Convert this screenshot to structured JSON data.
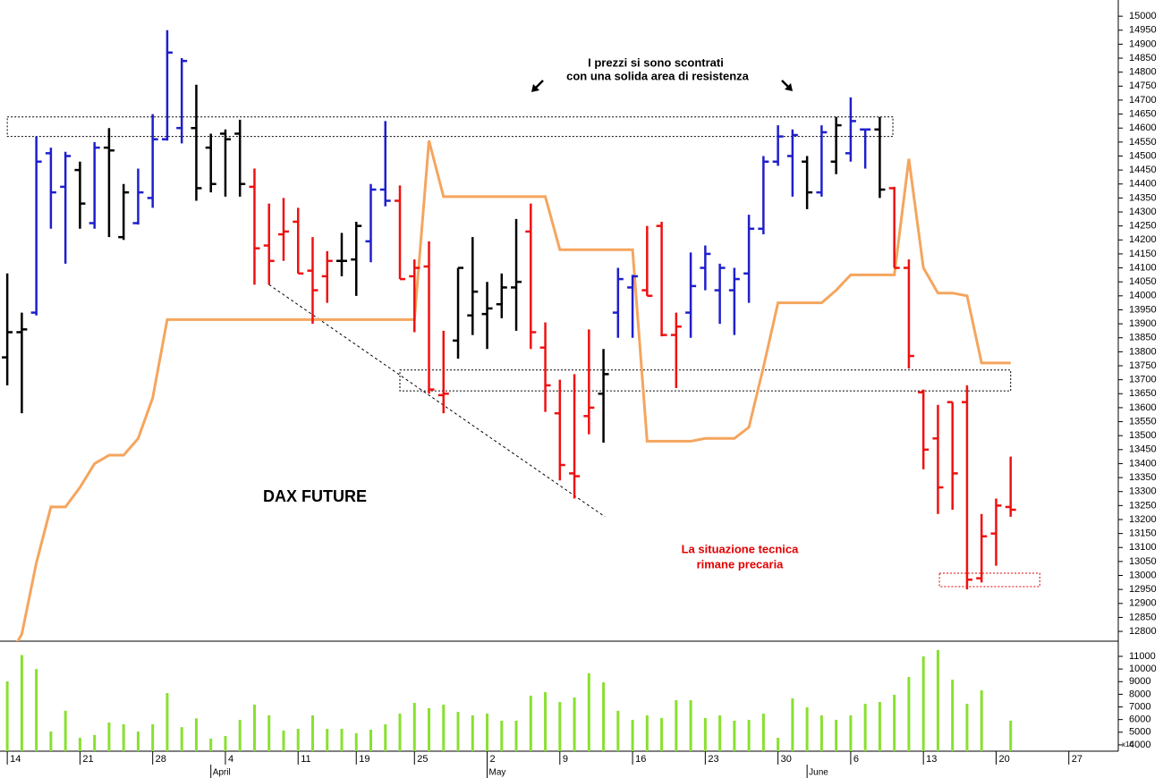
{
  "chart_data": [
    {
      "type": "ohlc",
      "title": "DAX FUTURE",
      "annotations": [
        "I prezzi si sono scontrati",
        "con una solida area di resistenza",
        "La situazione tecnica",
        "rimane precaria"
      ],
      "x": [
        0,
        1,
        2,
        3,
        4,
        5,
        6,
        7,
        8,
        9,
        10,
        11,
        12,
        13,
        14,
        15,
        16,
        17,
        18,
        19,
        20,
        21,
        22,
        23,
        24,
        25,
        26,
        27,
        28,
        29,
        30,
        31,
        32,
        33,
        34,
        35,
        36,
        37,
        38,
        39,
        40,
        41,
        42,
        43,
        44,
        45,
        46,
        47,
        48,
        49,
        50,
        51,
        52,
        53,
        54,
        55,
        56,
        57,
        58,
        59,
        60,
        61,
        62,
        63,
        64,
        65,
        66,
        67,
        68,
        69
      ],
      "xlim": [
        -0.5,
        76.4
      ],
      "ylim": [
        12765,
        15058
      ],
      "yticks": [
        12800,
        12850,
        12900,
        12950,
        13000,
        13050,
        13100,
        13150,
        13200,
        13250,
        13300,
        13350,
        13400,
        13450,
        13500,
        13550,
        13600,
        13650,
        13700,
        13750,
        13800,
        13850,
        13900,
        13950,
        14000,
        14050,
        14100,
        14150,
        14200,
        14250,
        14300,
        14350,
        14400,
        14450,
        14500,
        14550,
        14600,
        14650,
        14700,
        14750,
        14800,
        14850,
        14900,
        14950,
        15000
      ],
      "open": [
        13780,
        13870,
        13940,
        14510,
        14390,
        14450,
        14260,
        14530,
        14210,
        14260,
        14350,
        14560,
        14600,
        14600,
        14530,
        14580,
        14580,
        14390,
        14180,
        14220,
        14265,
        14090,
        14070,
        14125,
        14130,
        14195,
        14380,
        14340,
        14070,
        14105,
        13645,
        13840,
        13930,
        13935,
        13970,
        14030,
        14230,
        13815,
        13580,
        13365,
        13570,
        13650,
        13940,
        14030,
        14020,
        14250,
        13860,
        13940,
        14100,
        14020,
        14020,
        14080,
        14240,
        14480,
        14500,
        14480,
        14370,
        14480,
        14510,
        14595,
        14595,
        14385,
        14100,
        13655,
        13490,
        13620,
        13620,
        12990,
        13150,
        13245
      ],
      "high": [
        14080,
        13940,
        14570,
        14530,
        14515,
        14480,
        14550,
        14600,
        14400,
        14455,
        14650,
        14950,
        14850,
        14755,
        14580,
        14595,
        14630,
        14455,
        14330,
        14350,
        14315,
        14210,
        14160,
        14225,
        14265,
        14400,
        14625,
        14395,
        14130,
        14195,
        13875,
        14100,
        14210,
        14050,
        14080,
        14275,
        14330,
        13905,
        13700,
        13720,
        13880,
        13810,
        14100,
        14075,
        14250,
        14265,
        13940,
        14155,
        14180,
        14115,
        14100,
        14290,
        14500,
        14610,
        14595,
        14500,
        14610,
        14640,
        14710,
        14595,
        14640,
        14390,
        14130,
        13665,
        13610,
        13620,
        13680,
        13220,
        13275,
        13425
      ],
      "low": [
        13680,
        13580,
        13930,
        14240,
        14115,
        14240,
        14240,
        14210,
        14200,
        14255,
        14315,
        14555,
        14545,
        14340,
        14370,
        14355,
        14355,
        14040,
        14040,
        14125,
        14080,
        13900,
        13975,
        14070,
        14000,
        14120,
        14320,
        14060,
        13870,
        13650,
        13580,
        13775,
        13860,
        13810,
        13920,
        13875,
        13810,
        13585,
        13340,
        13275,
        13505,
        13475,
        13850,
        13850,
        14000,
        13855,
        13670,
        13850,
        14020,
        13900,
        13860,
        13975,
        14220,
        14465,
        14355,
        14310,
        14355,
        14435,
        14480,
        14455,
        14350,
        14100,
        13740,
        13380,
        13220,
        13235,
        12950,
        12975,
        13035,
        13210
      ],
      "close": [
        13870,
        13880,
        14480,
        14370,
        14500,
        14330,
        14530,
        14520,
        14370,
        14370,
        14560,
        14870,
        14840,
        14385,
        14400,
        14560,
        14400,
        14170,
        14125,
        14230,
        14080,
        14020,
        14125,
        14125,
        14250,
        14380,
        14340,
        14060,
        14100,
        13665,
        13650,
        14100,
        14015,
        13955,
        14030,
        14050,
        13870,
        13680,
        13395,
        13355,
        13600,
        13720,
        14060,
        14070,
        14000,
        13860,
        13890,
        14035,
        14150,
        14100,
        14060,
        14240,
        14480,
        14570,
        14575,
        14370,
        14585,
        14610,
        14625,
        14595,
        14380,
        14100,
        13785,
        13450,
        13315,
        13365,
        12985,
        13140,
        13250,
        13235
      ],
      "colors": [
        "#000000",
        "#000000",
        "#1f1fcc",
        "#1f1fcc",
        "#1f1fcc",
        "#000000",
        "#1f1fcc",
        "#000000",
        "#000000",
        "#1f1fcc",
        "#1f1fcc",
        "#1f1fcc",
        "#1f1fcc",
        "#000000",
        "#000000",
        "#000000",
        "#000000",
        "#ee1111",
        "#ee1111",
        "#ee1111",
        "#ee1111",
        "#ee1111",
        "#ee1111",
        "#000000",
        "#000000",
        "#1f1fcc",
        "#1f1fcc",
        "#ee1111",
        "#ee1111",
        "#ee1111",
        "#ee1111",
        "#000000",
        "#000000",
        "#000000",
        "#000000",
        "#000000",
        "#ee1111",
        "#ee1111",
        "#ee1111",
        "#ee1111",
        "#ee1111",
        "#000000",
        "#1f1fcc",
        "#1f1fcc",
        "#ee1111",
        "#ee1111",
        "#ee1111",
        "#1f1fcc",
        "#1f1fcc",
        "#1f1fcc",
        "#1f1fcc",
        "#1f1fcc",
        "#1f1fcc",
        "#1f1fcc",
        "#1f1fcc",
        "#000000",
        "#1f1fcc",
        "#000000",
        "#1f1fcc",
        "#1f1fcc",
        "#000000",
        "#ee1111",
        "#ee1111",
        "#ee1111",
        "#ee1111",
        "#ee1111",
        "#ee1111",
        "#ee1111",
        "#ee1111",
        "#ee1111"
      ],
      "overlay": {
        "color": "#f5a55e",
        "values": [
          12700,
          12790,
          13045,
          13245,
          13245,
          13315,
          13400,
          13430,
          13430,
          13490,
          13635,
          13915,
          13915,
          13915,
          13915,
          13915,
          13915,
          13915,
          13915,
          13915,
          13915,
          13915,
          13915,
          13915,
          13915,
          13915,
          13915,
          13915,
          13915,
          14555,
          14355,
          14355,
          14355,
          14355,
          14355,
          14355,
          14355,
          14355,
          14165,
          14165,
          14165,
          14165,
          14165,
          14165,
          13480,
          13480,
          13480,
          13480,
          13490,
          13490,
          13490,
          13530,
          13745,
          13975,
          13975,
          13975,
          13975,
          14020,
          14075,
          14075,
          14075,
          14075,
          14490,
          14100,
          14010,
          14010,
          14000,
          13760,
          13760,
          13760
        ]
      },
      "zones": [
        {
          "x": [
            0,
            60.9
          ],
          "y": [
            14640,
            14570
          ],
          "color": "#000000"
        },
        {
          "x": [
            27,
            69
          ],
          "y": [
            13735,
            13660
          ],
          "color": "#000000"
        },
        {
          "x": [
            64.1,
            71
          ],
          "y": [
            13008,
            12960
          ],
          "color": "#e00000"
        }
      ],
      "trendline": {
        "x": [
          18,
          41.1
        ],
        "y": [
          14040,
          13210
        ],
        "color": "#000000"
      }
    },
    {
      "type": "bar",
      "x": [
        0,
        1,
        2,
        3,
        4,
        5,
        6,
        7,
        8,
        9,
        10,
        11,
        12,
        13,
        14,
        15,
        16,
        17,
        18,
        19,
        20,
        21,
        22,
        23,
        24,
        25,
        26,
        27,
        28,
        29,
        30,
        31,
        32,
        33,
        34,
        35,
        36,
        37,
        38,
        39,
        40,
        41,
        42,
        43,
        44,
        45,
        46,
        47,
        48,
        49,
        50,
        51,
        52,
        53,
        54,
        55,
        56,
        57,
        58,
        59,
        60,
        61,
        62,
        63,
        64,
        65,
        66,
        67,
        68,
        69
      ],
      "values": [
        9020,
        11100,
        10000,
        5060,
        6700,
        4560,
        4780,
        5770,
        5630,
        5060,
        5630,
        8100,
        5400,
        6100,
        4500,
        4700,
        5980,
        7180,
        6330,
        5130,
        5270,
        6330,
        5270,
        5270,
        4920,
        5200,
        5630,
        6470,
        7320,
        6900,
        7180,
        6610,
        6330,
        6470,
        5910,
        5910,
        7890,
        8170,
        7390,
        7750,
        9660,
        8950,
        6690,
        5980,
        6330,
        6120,
        7530,
        7530,
        6120,
        6330,
        5910,
        5980,
        6470,
        4560,
        7680,
        6970,
        6330,
        5980,
        6330,
        7250,
        7390,
        7960,
        9370,
        11000,
        11500,
        9160,
        7250,
        8310,
        null,
        5910
      ],
      "color": "#88e030",
      "unit_label": "x10",
      "xlim": [
        -0.5,
        76.4
      ],
      "ylim": [
        3500,
        12130
      ],
      "yticks": [
        4000,
        5000,
        6000,
        7000,
        8000,
        9000,
        10000,
        11000
      ],
      "xticks": [
        {
          "value": 0,
          "label": "14"
        },
        {
          "value": 5,
          "label": "21"
        },
        {
          "value": 10,
          "label": "28"
        },
        {
          "value": 15,
          "label": "4"
        },
        {
          "value": 20,
          "label": "11"
        },
        {
          "value": 24,
          "label": "19"
        },
        {
          "value": 28,
          "label": "25"
        },
        {
          "value": 33,
          "label": "2"
        },
        {
          "value": 38,
          "label": "9"
        },
        {
          "value": 43,
          "label": "16"
        },
        {
          "value": 48,
          "label": "23"
        },
        {
          "value": 53,
          "label": "30"
        },
        {
          "value": 58,
          "label": "6"
        },
        {
          "value": 63,
          "label": "13"
        },
        {
          "value": 68,
          "label": "20"
        },
        {
          "value": 73,
          "label": "27"
        }
      ],
      "month_ticks": [
        {
          "value": 14,
          "label": "April"
        },
        {
          "value": 33,
          "label": "May"
        },
        {
          "value": 55,
          "label": "June"
        }
      ]
    }
  ]
}
